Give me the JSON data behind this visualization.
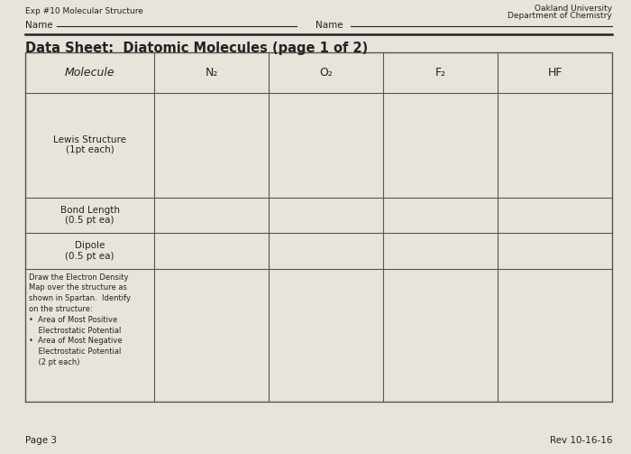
{
  "background_color": "#d8d4cc",
  "page_bg": "#e8e4dc",
  "header_left": "Exp #10 Molecular Structure",
  "header_right_line1": "Oakland University",
  "header_right_line2": "Department of Chemistry",
  "name_label1": "Name",
  "name_label2": "Name",
  "title": "Data Sheet:  Diatomic Molecules (page 1 of 2)",
  "col_headers": [
    "Molecule",
    "N₂",
    "O₂",
    "F₂",
    "HF"
  ],
  "row1_label_main": "Lewis Structure",
  "row1_label_sub": "(1pt each)",
  "row2_label_main": "Bond Length",
  "row2_label_sub": "(0.5 pt ea)",
  "row3_label_main": "Dipole",
  "row3_label_sub": "(0.5 pt ea)",
  "row4_text": "Draw the Electron Density\nMap over the structure as\nshown in Spartan.  Identify\non the structure:\n•  Area of Most Positive\n    Electrostatic Potential\n•  Area of Most Negative\n    Electrostatic Potential\n    (2 pt each)",
  "footer_left": "Page 3",
  "footer_right": "Rev 10-16-16",
  "table_line_color": "#555555",
  "text_color": "#222222",
  "title_fontsize": 10.5,
  "header_fontsize": 8,
  "cell_label_fontsize": 8,
  "footer_fontsize": 8
}
